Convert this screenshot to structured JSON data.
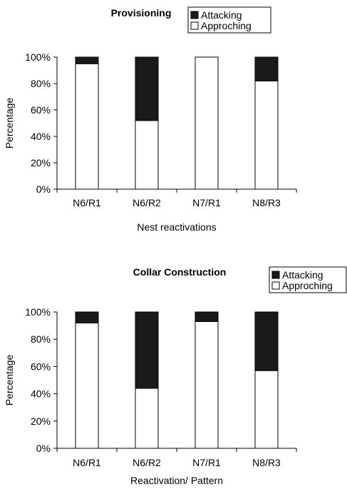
{
  "chart_data": [
    {
      "type": "bar",
      "stacked": true,
      "title": "Provisioning",
      "xlabel": "Nest reactivations",
      "ylabel": "Percentage",
      "ylim": [
        0,
        100
      ],
      "yticks": [
        "0%",
        "20%",
        "40%",
        "60%",
        "80%",
        "100%"
      ],
      "categories": [
        "N6/R1",
        "N6/R2",
        "N7/R1",
        "N8/R3"
      ],
      "series": [
        {
          "name": "Approching",
          "color": "#ffffff",
          "values": [
            95,
            52,
            100,
            82
          ]
        },
        {
          "name": "Attacking",
          "color": "#1a1a1a",
          "values": [
            5,
            48,
            0,
            18
          ]
        }
      ],
      "legend": {
        "placement": "top-right",
        "items": [
          "Attacking",
          "Approching"
        ]
      }
    },
    {
      "type": "bar",
      "stacked": true,
      "title": "Collar Construction",
      "xlabel": "Reactivation/ Pattern",
      "ylabel": "Percentage",
      "ylim": [
        0,
        100
      ],
      "yticks": [
        "0%",
        "20%",
        "40%",
        "60%",
        "80%",
        "100%"
      ],
      "categories": [
        "N6/R1",
        "N6/R2",
        "N7/R1",
        "N8/R3"
      ],
      "series": [
        {
          "name": "Approching",
          "color": "#ffffff",
          "values": [
            92,
            44,
            93,
            57
          ]
        },
        {
          "name": "Attacking",
          "color": "#1a1a1a",
          "values": [
            8,
            56,
            7,
            43
          ]
        }
      ],
      "legend": {
        "placement": "top-right",
        "items": [
          "Attacking",
          "Approching"
        ]
      }
    }
  ]
}
